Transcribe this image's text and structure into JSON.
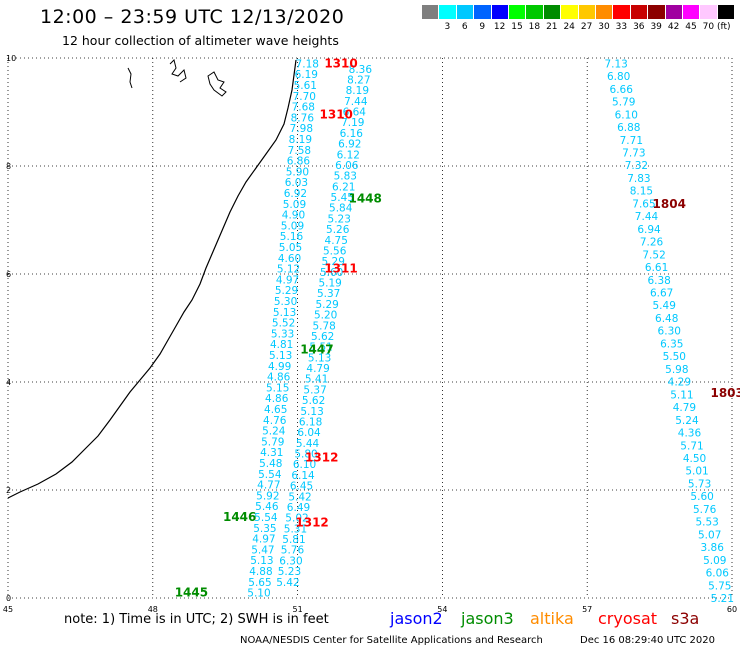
{
  "header": {
    "title": "12:00 – 23:59 UTC 12/13/2020",
    "subtitle": "12 hour collection of altimeter wave heights"
  },
  "colorbar": {
    "unit_label": "(ft)",
    "bins": [
      {
        "label": "",
        "color": "#7f7f7f"
      },
      {
        "label": "3",
        "color": "#00ffff"
      },
      {
        "label": "6",
        "color": "#00c8ff"
      },
      {
        "label": "9",
        "color": "#0064ff"
      },
      {
        "label": "12",
        "color": "#0000ff"
      },
      {
        "label": "15",
        "color": "#00ff00"
      },
      {
        "label": "18",
        "color": "#00c800"
      },
      {
        "label": "21",
        "color": "#008c00"
      },
      {
        "label": "24",
        "color": "#ffff00"
      },
      {
        "label": "27",
        "color": "#ffc800"
      },
      {
        "label": "30",
        "color": "#ff8c00"
      },
      {
        "label": "33",
        "color": "#ff0000"
      },
      {
        "label": "36",
        "color": "#c80000"
      },
      {
        "label": "39",
        "color": "#8c0000"
      },
      {
        "label": "42",
        "color": "#a000a0"
      },
      {
        "label": "45",
        "color": "#ff00ff"
      },
      {
        "label": "70",
        "color": "#ffc8ff"
      },
      {
        "label": "",
        "color": "#000000"
      }
    ]
  },
  "axes": {
    "x_ticks": [
      "45",
      "48",
      "51",
      "54",
      "57",
      "60"
    ],
    "y_ticks": [
      "0",
      "2",
      "4",
      "6",
      "8",
      "10"
    ]
  },
  "notes": {
    "note": "note: 1) Time is in UTC; 2) SWH is in feet",
    "footer_left": "NOAA/NESDIS Center for Satellite Applications and Research",
    "footer_right": "Dec 16 08:29:40 UTC 2020"
  },
  "legend": [
    {
      "label": "jason2",
      "color": "#0000ff"
    },
    {
      "label": "jason3",
      "color": "#008c00"
    },
    {
      "label": "altika",
      "color": "#ff8c00"
    },
    {
      "label": "cryosat",
      "color": "#ff0000"
    },
    {
      "label": "s3a",
      "color": "#8c0000"
    }
  ],
  "chart_data": {
    "type": "map",
    "lon_range": [
      45,
      60
    ],
    "lat_range": [
      0,
      10
    ],
    "grid": "dotted",
    "pass_labels": [
      {
        "label": "1310",
        "lon": 51.9,
        "lat": 9.9,
        "color": "#ff0000"
      },
      {
        "label": "1310",
        "lon": 51.8,
        "lat": 8.95,
        "color": "#ff0000"
      },
      {
        "label": "1448",
        "lon": 52.4,
        "lat": 7.4,
        "color": "#008c00"
      },
      {
        "label": "1311",
        "lon": 51.9,
        "lat": 6.1,
        "color": "#ff0000"
      },
      {
        "label": "1447",
        "lon": 51.4,
        "lat": 4.6,
        "color": "#008c00"
      },
      {
        "label": "1312",
        "lon": 51.5,
        "lat": 2.6,
        "color": "#ff0000"
      },
      {
        "label": "1446",
        "lon": 49.8,
        "lat": 1.5,
        "color": "#008c00"
      },
      {
        "label": "1312",
        "lon": 51.3,
        "lat": 1.4,
        "color": "#ff0000"
      },
      {
        "label": "1445",
        "lon": 48.8,
        "lat": 0.1,
        "color": "#008c00"
      },
      {
        "label": "1804",
        "lon": 58.7,
        "lat": 7.3,
        "color": "#8c0000"
      },
      {
        "label": "1803",
        "lon": 59.9,
        "lat": 3.8,
        "color": "#8c0000"
      }
    ],
    "tracks": [
      {
        "name": "jason3 pass 1448",
        "color": "#00c8ff",
        "lon_start": 51.2,
        "lat_start": 9.9,
        "lon_end": 50.2,
        "lat_end": 0.1,
        "values": [
          "7.18",
          "6.19",
          "5.61",
          "7.70",
          "7.68",
          "8.76",
          "7.98",
          "8.19",
          "7.58",
          "6.86",
          "5.90",
          "6.03",
          "6.92",
          "5.09",
          "4.90",
          "5.09",
          "5.16",
          "5.05",
          "4.60",
          "5.12",
          "4.97",
          "5.29",
          "5.30",
          "5.13",
          "5.52",
          "5.33",
          "4.81",
          "5.13",
          "4.99",
          "4.86",
          "5.15",
          "4.86",
          "4.65",
          "4.76",
          "5.24",
          "5.79",
          "4.31",
          "5.48",
          "5.54",
          "4.77",
          "5.92",
          "5.46",
          "5.54",
          "5.35",
          "4.97",
          "5.47",
          "5.13",
          "4.88",
          "5.65",
          "5.10"
        ]
      },
      {
        "name": "jason3 pass 1447 / 1311",
        "color": "#00c8ff",
        "lon_start": 52.3,
        "lat_start": 9.8,
        "lon_end": 50.8,
        "lat_end": 0.3,
        "values": [
          "8.36",
          "8.27",
          "8.19",
          "7.44",
          "6.64",
          "7.19",
          "6.16",
          "6.92",
          "6.12",
          "6.06",
          "5.83",
          "6.21",
          "5.45",
          "5.84",
          "5.23",
          "5.26",
          "4.75",
          "5.56",
          "5.29",
          "5.60",
          "5.19",
          "5.37",
          "5.29",
          "5.20",
          "5.78",
          "5.62",
          "5.51",
          "5.13",
          "4.79",
          "5.41",
          "5.37",
          "5.62",
          "5.13",
          "6.18",
          "6.04",
          "5.44",
          "5.80",
          "6.10",
          "6.14",
          "6.45",
          "5.42",
          "6.49",
          "5.02",
          "5.31",
          "5.81",
          "5.76",
          "6.30",
          "5.23",
          "5.42"
        ]
      },
      {
        "name": "s3a pass 1804 / 1803",
        "color": "#00c8ff",
        "lon_start": 57.6,
        "lat_start": 9.9,
        "lon_end": 59.8,
        "lat_end": 0.0,
        "values": [
          "7.13",
          "6.80",
          "6.66",
          "5.79",
          "6.10",
          "6.88",
          "7.71",
          "7.73",
          "7.32",
          "7.83",
          "8.15",
          "7.65",
          "7.44",
          "6.94",
          "7.26",
          "7.52",
          "6.61",
          "6.38",
          "6.67",
          "5.49",
          "6.48",
          "6.30",
          "6.35",
          "5.50",
          "5.98",
          "4.29",
          "5.11",
          "4.79",
          "5.24",
          "4.36",
          "5.71",
          "4.50",
          "5.01",
          "5.73",
          "5.60",
          "5.76",
          "5.53",
          "5.07",
          "3.86",
          "5.09",
          "6.06",
          "5.75",
          "5.21"
        ]
      }
    ]
  }
}
